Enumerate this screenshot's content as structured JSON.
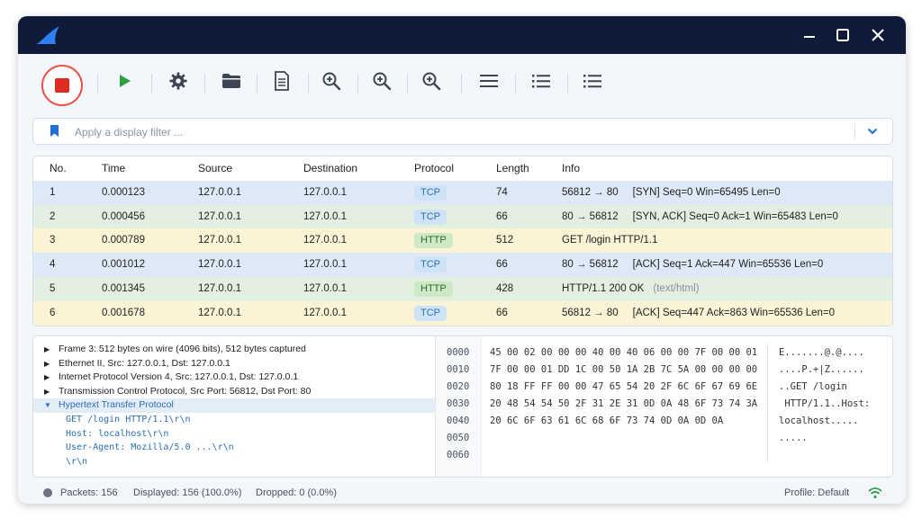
{
  "window": {
    "controls": {
      "minimize": "minimize-icon",
      "maximize": "maximize-icon",
      "close": "close-icon"
    }
  },
  "toolbar": {
    "buttons": [
      {
        "name": "stop-capture-button",
        "icon": "stop-icon"
      },
      {
        "name": "start-capture-button",
        "icon": "play-icon"
      },
      {
        "name": "capture-options-button",
        "icon": "gear-icon"
      },
      {
        "name": "open-file-button",
        "icon": "folder-icon"
      },
      {
        "name": "file-properties-button",
        "icon": "document-icon"
      },
      {
        "name": "zoom-in-button",
        "icon": "zoom-in-icon"
      },
      {
        "name": "zoom-in-2-button",
        "icon": "zoom-in-icon"
      },
      {
        "name": "zoom-in-3-button",
        "icon": "zoom-in-icon"
      },
      {
        "name": "list-view-button",
        "icon": "list-icon"
      },
      {
        "name": "bullet-list-button",
        "icon": "bullet-list-icon"
      },
      {
        "name": "detail-list-button",
        "icon": "bullet-list-icon"
      }
    ]
  },
  "filter": {
    "placeholder": "Apply a display filter ..."
  },
  "packet_list": {
    "columns": [
      "No.",
      "Time",
      "Source",
      "Destination",
      "Protocol",
      "Length",
      "Info"
    ],
    "rows": [
      {
        "no": "1",
        "time": "0.000123",
        "source": "127.0.0.1",
        "destination": "127.0.0.1",
        "protocol": "TCP",
        "length": "74",
        "info": "56812 → 80     [SYN] Seq=0 Win=65495 Len=0",
        "info_extra": "",
        "bg": "#dde9f7"
      },
      {
        "no": "2",
        "time": "0.000456",
        "source": "127.0.0.1",
        "destination": "127.0.0.1",
        "protocol": "TCP",
        "length": "66",
        "info": "80 → 56812     [SYN, ACK] Seq=0 Ack=1 Win=65483 Len=0",
        "info_extra": "",
        "bg": "#e3f0e1"
      },
      {
        "no": "3",
        "time": "0.000789",
        "source": "127.0.0.1",
        "destination": "127.0.0.1",
        "protocol": "HTTP",
        "length": "512",
        "info": "GET /login HTTP/1.1",
        "info_extra": "",
        "bg": "#fbf3d6"
      },
      {
        "no": "4",
        "time": "0.001012",
        "source": "127.0.0.1",
        "destination": "127.0.0.1",
        "protocol": "TCP",
        "length": "66",
        "info": "80 → 56812     [ACK] Seq=1 Ack=447 Win=65536 Len=0",
        "info_extra": "",
        "bg": "#dde9f7"
      },
      {
        "no": "5",
        "time": "0.001345",
        "source": "127.0.0.1",
        "destination": "127.0.0.1",
        "protocol": "HTTP",
        "length": "428",
        "info": "HTTP/1.1 200 OK",
        "info_extra": "(text/html)",
        "bg": "#e3f0e1"
      },
      {
        "no": "6",
        "time": "0.001678",
        "source": "127.0.0.1",
        "destination": "127.0.0.1",
        "protocol": "TCP",
        "length": "66",
        "info": "56812 → 80     [ACK] Seq=447 Ack=863 Win=65536 Len=0",
        "info_extra": "",
        "bg": "#fbf3d6"
      }
    ]
  },
  "details": {
    "items": [
      {
        "text": "Frame 3: 512 bytes on wire (4096 bits), 512 bytes captured",
        "expanded": false,
        "selected": false,
        "child": false
      },
      {
        "text": "Ethernet II, Src: 127.0.0.1, Dst: 127.0.0.1",
        "expanded": false,
        "selected": false,
        "child": false
      },
      {
        "text": "Internet Protocol Version 4, Src: 127.0.0.1, Dst: 127.0.0.1",
        "expanded": false,
        "selected": false,
        "child": false
      },
      {
        "text": "Transmission Control Protocol, Src Port: 56812, Dst Port: 80",
        "expanded": false,
        "selected": false,
        "child": false
      },
      {
        "text": "Hypertext Transfer Protocol",
        "expanded": true,
        "selected": true,
        "child": false
      },
      {
        "text": "GET /login HTTP/1.1\\r\\n",
        "child": true
      },
      {
        "text": "Host: localhost\\r\\n",
        "child": true
      },
      {
        "text": "User-Agent: Mozilla/5.0 ...\\r\\n",
        "child": true
      },
      {
        "text": "\\r\\n",
        "child": true
      }
    ]
  },
  "hex": {
    "offsets": [
      "0000",
      "0010",
      "0020",
      "0030",
      "0040",
      "0050",
      "0060"
    ],
    "bytes": [
      "45 00 02 00 00 00 40 00 40 06 00 00 7F 00 00 01",
      "7F 00 00 01 DD 1C 00 50 1A 2B 7C 5A 00 00 00 00",
      "80 18 FF FF 00 00 47 65 54 20 2F 6C 6F 67 69 6E",
      "20 48 54 54 50 2F 31 2E 31 0D 0A 48 6F 73 74 3A",
      "20 6C 6F 63 61 6C 68 6F 73 74 0D 0A 0D 0A",
      "",
      ""
    ],
    "ascii": [
      "E.......@.@....",
      "....P.+|Z......",
      "..GET /login",
      " HTTP/1.1..Host:",
      "localhost.....",
      ".....",
      ""
    ]
  },
  "status": {
    "packets": "Packets: 156",
    "displayed": "Displayed: 156 (100.0%)",
    "dropped": "Dropped: 0 (0.0%)",
    "profile": "Profile: Default"
  },
  "colors": {
    "accent": "#2a6fb3",
    "record": "#e8524a",
    "play": "#2ea043",
    "titlebar": "#0e1a38"
  }
}
